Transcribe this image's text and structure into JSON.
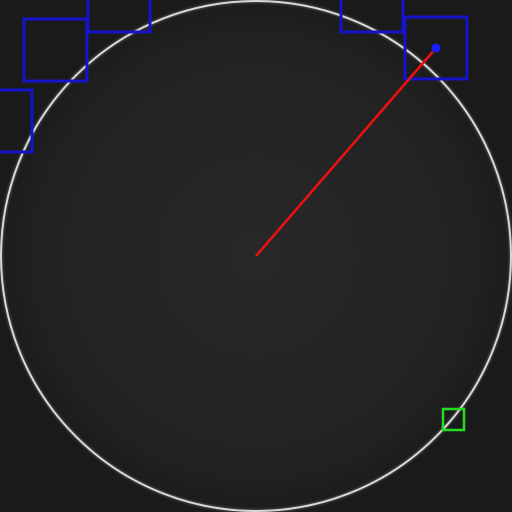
{
  "colors": {
    "background": "#1a1a1a",
    "field_center": "#262626",
    "field_edge": "#1e1e1e",
    "rim": "#d8d8d8",
    "roi_boxes": "#1414cc",
    "measurement_line": "#ee1111",
    "measurement_endpoint": "#1c1cff",
    "marker_box": "#22dd22"
  },
  "icons": {
    "endpoint": "endpoint-dot-icon"
  }
}
